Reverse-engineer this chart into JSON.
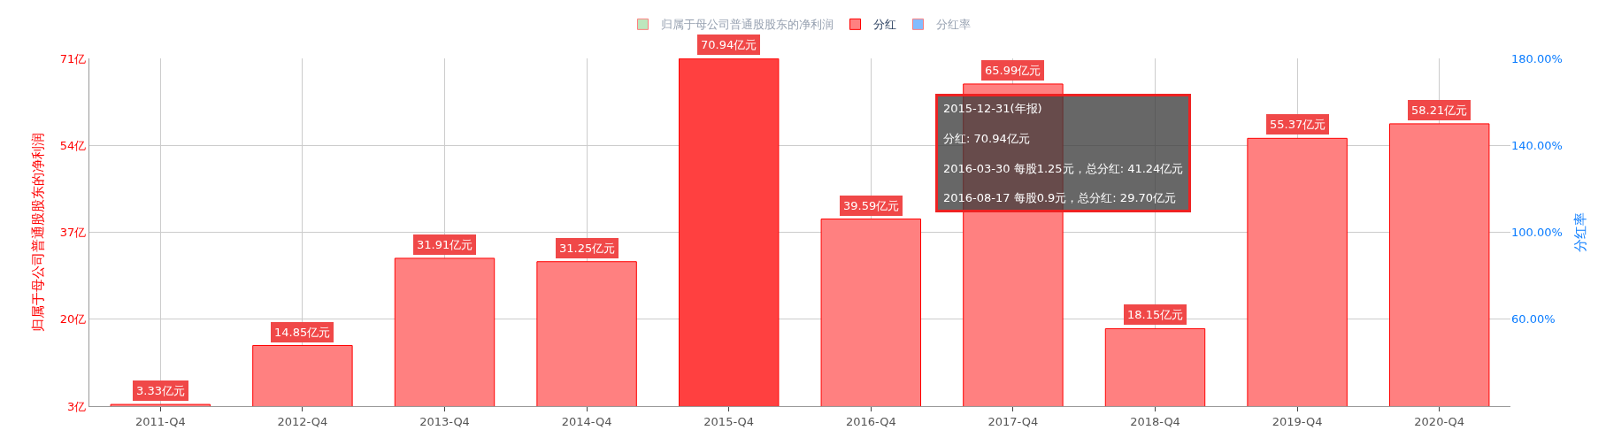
{
  "chart_data": {
    "type": "bar",
    "categories": [
      "2011-Q4",
      "2012-Q4",
      "2013-Q4",
      "2014-Q4",
      "2015-Q4",
      "2016-Q4",
      "2017-Q4",
      "2018-Q4",
      "2019-Q4",
      "2020-Q4"
    ],
    "series": [
      {
        "name": "归属于母公司普通股股东的净利润",
        "color": "#7ccd7c",
        "values": [
          null,
          null,
          null,
          null,
          null,
          null,
          null,
          null,
          null,
          null
        ]
      },
      {
        "name": "分红",
        "color": "#ff8080",
        "colors": [
          "#ff8080",
          "#ff8080",
          "#ff8080",
          "#ff8080",
          "#ff4040",
          "#ff8080",
          "#ff8080",
          "#ff8080",
          "#ff8080",
          "#ff8080"
        ],
        "values": [
          3.33,
          14.85,
          31.91,
          31.25,
          70.94,
          39.59,
          65.99,
          18.15,
          55.37,
          58.21
        ],
        "value_labels": [
          "3.33亿元",
          "14.85亿元",
          "31.91亿元",
          "31.25亿元",
          "70.94亿元",
          "39.59亿元",
          "65.99亿元",
          "18.15亿元",
          "55.37亿元",
          "58.21亿元"
        ]
      },
      {
        "name": "分红率",
        "color": "#0a7cff",
        "axis": "y2",
        "values": [
          null,
          null,
          null,
          null,
          null,
          null,
          null,
          null,
          null,
          null
        ]
      }
    ],
    "ylabel": "归属于母公司普通股股东的净利润",
    "y2label": "分红率",
    "ylim": [
      3,
      71
    ],
    "yticks": [
      {
        "value": 3,
        "label": "3亿"
      },
      {
        "value": 20,
        "label": "20亿"
      },
      {
        "value": 37,
        "label": "37亿"
      },
      {
        "value": 54,
        "label": "54亿"
      },
      {
        "value": 71,
        "label": "71亿"
      }
    ],
    "y2lim": [
      20,
      180
    ],
    "y2ticks": [
      {
        "value": 60,
        "label": "60.00%"
      },
      {
        "value": 100,
        "label": "100.00%"
      },
      {
        "value": 140,
        "label": "140.00%"
      },
      {
        "value": 180,
        "label": "180.00%"
      }
    ],
    "grid": true,
    "legend": "top",
    "annotations": [
      "2015-12-31(年报)",
      "分红: 70.94亿元",
      "2016-03-30 每股1.25元，总分红: 41.24亿元",
      "2016-08-17 每股0.9元，总分红: 29.70亿元"
    ]
  }
}
